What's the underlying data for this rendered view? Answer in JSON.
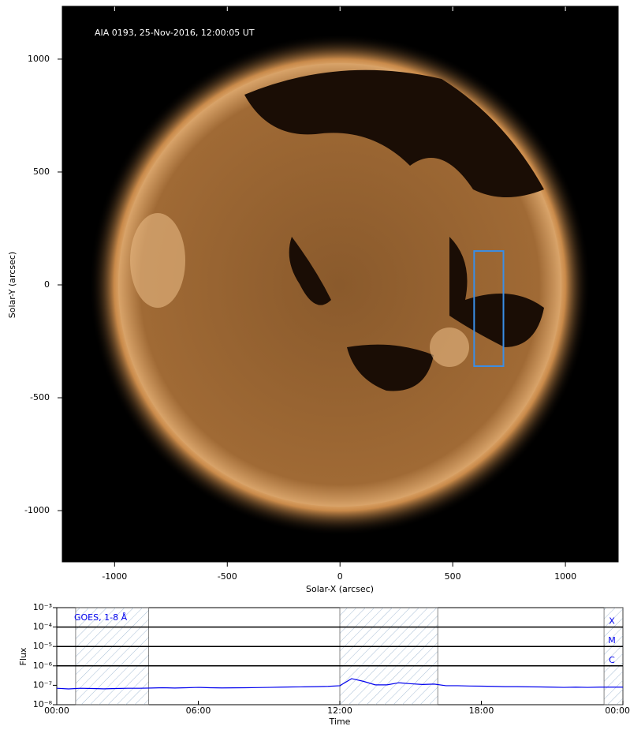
{
  "chart_data": [
    {
      "type": "image",
      "annotation": "AIA 0193, 25-Nov-2016, 12:00:05 UT",
      "xlabel": "Solar-X (arcsec)",
      "ylabel": "Solar-Y (arcsec)",
      "xlim": [
        -1232,
        1234
      ],
      "ylim": [
        -1227,
        1234
      ],
      "xticks": [
        -1000,
        -500,
        0,
        500,
        1000
      ],
      "yticks": [
        -1000,
        -500,
        0,
        500,
        1000
      ],
      "box": {
        "x": [
          595,
          725
        ],
        "y": [
          -360,
          150
        ],
        "color": "#3a8ee6"
      }
    },
    {
      "type": "line",
      "xlabel": "Time",
      "ylabel": "Flux",
      "xlim": [
        0,
        24
      ],
      "ylim": [
        1e-08,
        0.001
      ],
      "log_y": true,
      "xticks": [
        {
          "value": 0,
          "label": "00:00"
        },
        {
          "value": 6,
          "label": "06:00"
        },
        {
          "value": 12,
          "label": "12:00"
        },
        {
          "value": 18,
          "label": "18:00"
        },
        {
          "value": 24,
          "label": "00:00"
        }
      ],
      "yticks": [
        {
          "value": 1e-08,
          "label": "10⁻⁸"
        },
        {
          "value": 1e-07,
          "label": "10⁻⁷"
        },
        {
          "value": 1e-06,
          "label": "10⁻⁶"
        },
        {
          "value": 1e-05,
          "label": "10⁻⁵"
        },
        {
          "value": 0.0001,
          "label": "10⁻⁴"
        },
        {
          "value": 0.001,
          "label": "10⁻³"
        }
      ],
      "flare_levels": [
        {
          "value": 0.0001,
          "label": "X"
        },
        {
          "value": 1e-05,
          "label": "M"
        },
        {
          "value": 1e-06,
          "label": "C"
        }
      ],
      "shaded": [
        [
          0.8,
          3.9
        ],
        [
          12,
          16.15
        ],
        [
          23.2,
          24
        ]
      ],
      "x": [
        0,
        0.5,
        1,
        1.5,
        2,
        2.5,
        3,
        3.5,
        4,
        4.5,
        5,
        5.5,
        6,
        6.5,
        7,
        7.5,
        8,
        8.5,
        9,
        9.5,
        10,
        10.5,
        11,
        11.5,
        12,
        12.5,
        13,
        13.5,
        14,
        14.5,
        15,
        15.5,
        16,
        16.5,
        17,
        17.5,
        18,
        18.5,
        19,
        19.5,
        20,
        20.5,
        21,
        21.5,
        22,
        22.5,
        23,
        23.5,
        24
      ],
      "series": [
        {
          "name": "GOES, 1-8 Å",
          "color": "#0000ee",
          "values": [
            7e-08,
            6.5e-08,
            7e-08,
            6.8e-08,
            6.6e-08,
            6.8e-08,
            7e-08,
            7e-08,
            7.2e-08,
            7.5e-08,
            7.2e-08,
            7.5e-08,
            7.8e-08,
            7.5e-08,
            7.3e-08,
            7.4e-08,
            7.5e-08,
            7.6e-08,
            7.8e-08,
            8e-08,
            8.2e-08,
            8.3e-08,
            8.5e-08,
            8.8e-08,
            9.5e-08,
            2.2e-07,
            1.6e-07,
            1.05e-07,
            1.05e-07,
            1.35e-07,
            1.2e-07,
            1.1e-07,
            1.15e-07,
            9.5e-08,
            9.5e-08,
            9.2e-08,
            9e-08,
            8.8e-08,
            8.5e-08,
            8.5e-08,
            8.3e-08,
            8.2e-08,
            8e-08,
            7.8e-08,
            8e-08,
            7.8e-08,
            8e-08,
            8e-08,
            8e-08
          ]
        }
      ]
    }
  ]
}
